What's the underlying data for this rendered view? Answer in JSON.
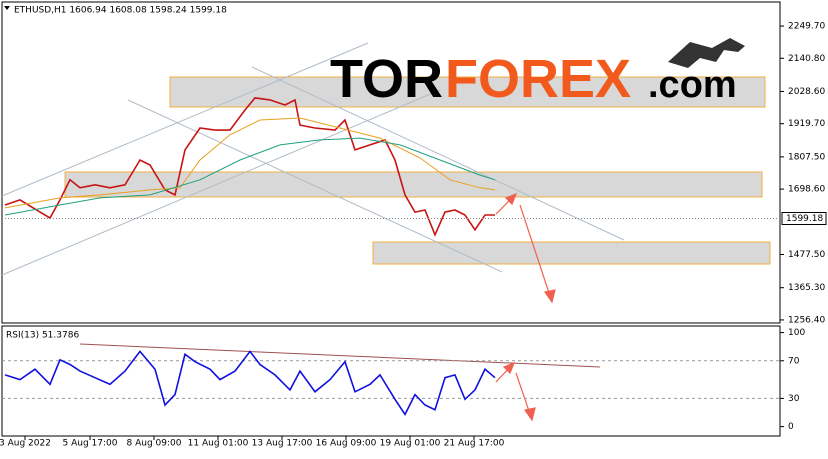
{
  "logo": {
    "parts": [
      "TOR",
      "FOREX",
      ".com"
    ]
  },
  "chart_data": [
    {
      "type": "line",
      "title": "ETHUSD,H1  1606.94 1608.08 1598.24 1599.18",
      "xlim": [
        -23,
        755
      ],
      "ylim": [
        1246,
        2331
      ],
      "yticks": [
        {
          "value": 2249.7,
          "label": "2249.70"
        },
        {
          "value": 2140.8,
          "label": "2140.80"
        },
        {
          "value": 2028.6,
          "label": "2028.60"
        },
        {
          "value": 1919.7,
          "label": "1919.70"
        },
        {
          "value": 1807.5,
          "label": "1807.50"
        },
        {
          "value": 1698.6,
          "label": "1698.60"
        },
        {
          "value": 1477.5,
          "label": "1477.50"
        },
        {
          "value": 1365.3,
          "label": "1365.30"
        },
        {
          "value": 1256.4,
          "label": "1256.40"
        }
      ],
      "last_price": 1599.18,
      "series": [
        {
          "color": "#c81414",
          "x": [
            -20,
            -5,
            15,
            25,
            35,
            45,
            55,
            70,
            85,
            100,
            115,
            125,
            140,
            150,
            160,
            175,
            190,
            205,
            220,
            230,
            245,
            260,
            270,
            275,
            290,
            310,
            320,
            330,
            345,
            360,
            370,
            380,
            390,
            400,
            410,
            420,
            430,
            440,
            450,
            460,
            470
          ],
          "values": [
            1645,
            1662,
            1621,
            1601,
            1662,
            1730,
            1703,
            1713,
            1703,
            1713,
            1797,
            1780,
            1696,
            1679,
            1831,
            1905,
            1898,
            1898,
            1966,
            2007,
            2000,
            1983,
            2000,
            1915,
            1905,
            1898,
            1932,
            1831,
            1848,
            1865,
            1797,
            1679,
            1621,
            1628,
            1544,
            1621,
            1628,
            1611,
            1561,
            1611,
            1611
          ]
        },
        {
          "color": "#e8a020",
          "x": [
            -20,
            35,
            75,
            125,
            155,
            175,
            205,
            235,
            275,
            315,
            355,
            395,
            425,
            455,
            470
          ],
          "values": [
            1635,
            1669,
            1679,
            1696,
            1703,
            1797,
            1882,
            1932,
            1939,
            1905,
            1871,
            1804,
            1730,
            1703,
            1696
          ]
        },
        {
          "color": "#20a080",
          "x": [
            -20,
            35,
            75,
            125,
            175,
            215,
            255,
            295,
            335,
            375,
            415,
            455,
            470
          ],
          "values": [
            1611,
            1645,
            1669,
            1679,
            1730,
            1797,
            1848,
            1865,
            1871,
            1848,
            1797,
            1746,
            1730
          ]
        }
      ]
    },
    {
      "type": "line",
      "title": "RSI(13) 51.3786",
      "xlim": [
        -23,
        755
      ],
      "ylim": [
        -10,
        107
      ],
      "yticks": [
        100,
        70,
        30,
        0
      ],
      "xticks": [
        {
          "value": 0,
          "label": "3 Aug 2022"
        },
        {
          "value": 65,
          "label": "5 Aug 17:00"
        },
        {
          "value": 129,
          "label": "8 Aug 09:00"
        },
        {
          "value": 193,
          "label": "11 Aug 01:00"
        },
        {
          "value": 257,
          "label": "13 Aug 17:00"
        },
        {
          "value": 321,
          "label": "16 Aug 09:00"
        },
        {
          "value": 385,
          "label": "19 Aug 01:00"
        },
        {
          "value": 449,
          "label": "21 Aug 17:00"
        }
      ],
      "series": [
        {
          "color": "#1010e0",
          "x": [
            -20,
            -5,
            10,
            25,
            35,
            45,
            55,
            70,
            85,
            100,
            115,
            130,
            140,
            150,
            160,
            170,
            185,
            195,
            210,
            225,
            235,
            250,
            265,
            275,
            290,
            305,
            320,
            330,
            345,
            355,
            370,
            380,
            390,
            400,
            410,
            420,
            430,
            440,
            450,
            460,
            470
          ],
          "values": [
            55,
            50,
            61,
            45,
            71,
            66,
            59,
            52,
            45,
            59,
            80,
            61,
            23,
            34,
            77,
            69,
            61,
            50,
            59,
            80,
            66,
            55,
            39,
            59,
            37,
            50,
            69,
            37,
            45,
            55,
            29,
            13,
            34,
            23,
            18,
            52,
            55,
            29,
            39,
            61,
            52
          ]
        }
      ]
    }
  ]
}
